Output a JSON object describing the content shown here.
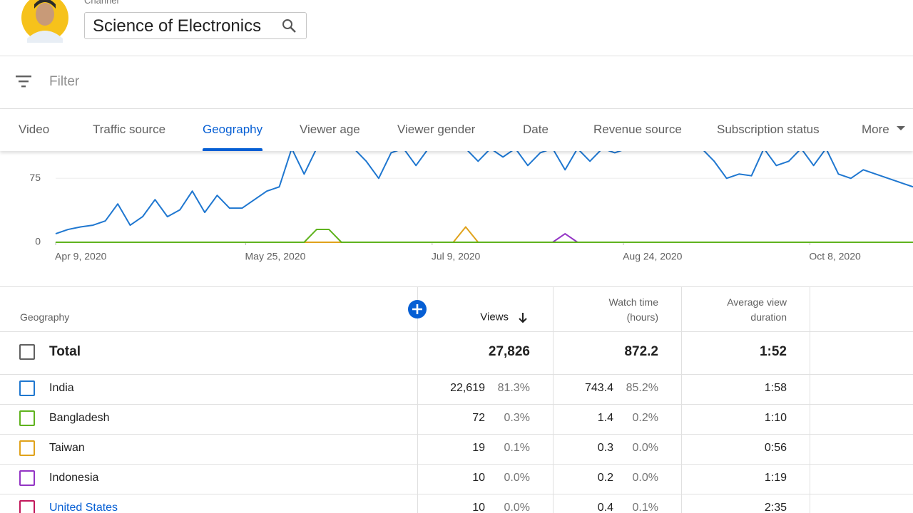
{
  "header": {
    "channel_label": "Channel",
    "channel_name": "Science of Electronics"
  },
  "filter": {
    "placeholder": "Filter"
  },
  "tabs": {
    "items": [
      "Video",
      "Traffic source",
      "Geography",
      "Viewer age",
      "Viewer gender",
      "Date",
      "Revenue source",
      "Subscription status",
      "More"
    ],
    "active": 2
  },
  "chart_data": {
    "type": "line",
    "ylim": [
      0,
      107
    ],
    "yticks": [
      0,
      75
    ],
    "xlim": [
      0,
      69
    ],
    "xticks": [
      {
        "value": 0,
        "label": "Apr 9, 2020"
      },
      {
        "value": 15.3,
        "label": "May 25, 2020"
      },
      {
        "value": 30.3,
        "label": "Jul 9, 2020"
      },
      {
        "value": 45.7,
        "label": "Aug 24, 2020"
      },
      {
        "value": 60.7,
        "label": "Oct 8, 2020"
      }
    ],
    "series": [
      {
        "color": "#1f77d0",
        "values": [
          10,
          15,
          18,
          20,
          25,
          45,
          20,
          30,
          50,
          30,
          38,
          60,
          35,
          55,
          40,
          40,
          50,
          60,
          65,
          110,
          80,
          110,
          110,
          110,
          110,
          95,
          75,
          105,
          110,
          90,
          110,
          110,
          110,
          110,
          95,
          110,
          100,
          110,
          90,
          105,
          110,
          85,
          110,
          95,
          110,
          105,
          110,
          110,
          110,
          110,
          110,
          110,
          110,
          95,
          75,
          80,
          78,
          110,
          90,
          95,
          110,
          90,
          110,
          80,
          75,
          85,
          80,
          75,
          70,
          65
        ]
      },
      {
        "color": "#9334c5",
        "values": [
          0,
          0,
          0,
          0,
          0,
          0,
          0,
          0,
          0,
          0,
          0,
          0,
          0,
          0,
          0,
          0,
          0,
          0,
          0,
          0,
          0,
          0,
          0,
          0,
          0,
          0,
          0,
          0,
          0,
          0,
          0,
          0,
          0,
          0,
          0,
          0,
          0,
          0,
          0,
          0,
          0,
          10,
          0,
          0,
          0,
          0,
          0,
          0,
          0,
          0,
          0,
          0,
          0,
          0,
          0,
          0,
          0,
          0,
          0,
          0,
          0,
          0,
          0,
          0,
          0,
          0,
          0,
          0,
          0,
          0
        ]
      },
      {
        "color": "#e0a21b",
        "values": [
          0,
          0,
          0,
          0,
          0,
          0,
          0,
          0,
          0,
          0,
          0,
          0,
          0,
          0,
          0,
          0,
          0,
          0,
          0,
          0,
          0,
          0,
          0,
          0,
          0,
          0,
          0,
          0,
          0,
          0,
          0,
          0,
          0,
          18,
          0,
          0,
          0,
          0,
          0,
          0,
          0,
          0,
          0,
          0,
          0,
          0,
          0,
          0,
          0,
          0,
          0,
          0,
          0,
          0,
          0,
          0,
          0,
          0,
          0,
          0,
          0,
          0,
          0,
          0,
          0,
          0,
          0,
          0,
          0,
          0
        ]
      },
      {
        "color": "#5fb31e",
        "values": [
          0,
          0,
          0,
          0,
          0,
          0,
          0,
          0,
          0,
          0,
          0,
          0,
          0,
          0,
          0,
          0,
          0,
          0,
          0,
          0,
          0,
          15,
          15,
          0,
          0,
          0,
          0,
          0,
          0,
          0,
          0,
          0,
          0,
          0,
          0,
          0,
          0,
          0,
          0,
          0,
          0,
          0,
          0,
          0,
          0,
          0,
          0,
          0,
          0,
          0,
          0,
          0,
          0,
          0,
          0,
          0,
          0,
          0,
          0,
          0,
          0,
          0,
          0,
          0,
          0,
          0,
          0,
          0,
          0,
          0
        ]
      }
    ]
  },
  "table": {
    "columns": [
      "Geography",
      "Views",
      "Watch time (hours)",
      "Average view duration"
    ],
    "total": {
      "label": "Total",
      "views": "27,826",
      "watch": "872.2",
      "avg": "1:52"
    },
    "rows": [
      {
        "name": "India",
        "color": "#1f77d0",
        "views": "22,619",
        "views_pct": "81.3%",
        "watch": "743.4",
        "watch_pct": "85.2%",
        "avg": "1:58"
      },
      {
        "name": "Bangladesh",
        "color": "#5fb31e",
        "views": "72",
        "views_pct": "0.3%",
        "watch": "1.4",
        "watch_pct": "0.2%",
        "avg": "1:10"
      },
      {
        "name": "Taiwan",
        "color": "#e0a21b",
        "views": "19",
        "views_pct": "0.1%",
        "watch": "0.3",
        "watch_pct": "0.0%",
        "avg": "0:56"
      },
      {
        "name": "Indonesia",
        "color": "#9334c5",
        "views": "10",
        "views_pct": "0.0%",
        "watch": "0.2",
        "watch_pct": "0.0%",
        "avg": "1:19"
      },
      {
        "name": "United States",
        "color": "#c2185b",
        "views": "10",
        "views_pct": "0.0%",
        "watch": "0.4",
        "watch_pct": "0.1%",
        "avg": "2:35"
      }
    ]
  }
}
